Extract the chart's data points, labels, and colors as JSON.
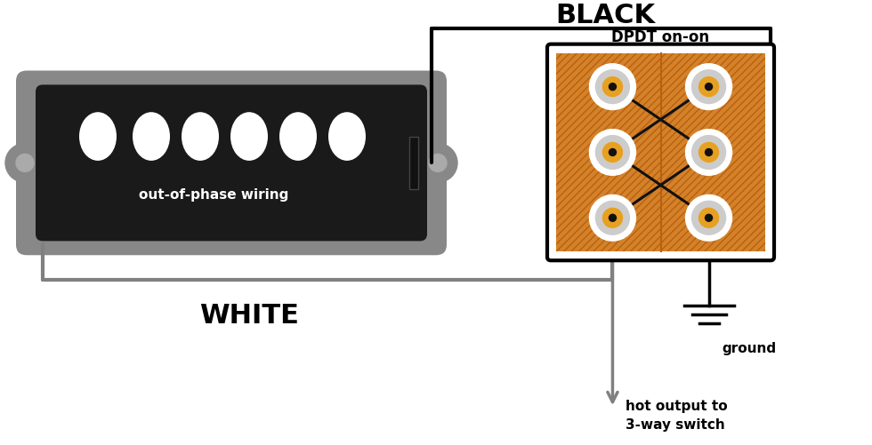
{
  "bg_color": "#ffffff",
  "pickup_body_color": "#1a1a1a",
  "pickup_shell_color": "#888888",
  "pickup_label": "out-of-phase wiring",
  "pickup_label_color": "#ffffff",
  "pole_color_white": "#ffffff",
  "switch_bg": "#d4822a",
  "switch_border": "#000000",
  "switch_label": "DPDT on-on",
  "switch_label_color": "#000000",
  "black_label": "BLACK",
  "white_label": "WHITE",
  "ground_label": "ground",
  "output_label": "hot output to\n3-way switch",
  "wire_color_black": "#000000",
  "wire_color_gray": "#808080",
  "terminal_orange": "#e8a020",
  "terminal_gray": "#cccccc"
}
